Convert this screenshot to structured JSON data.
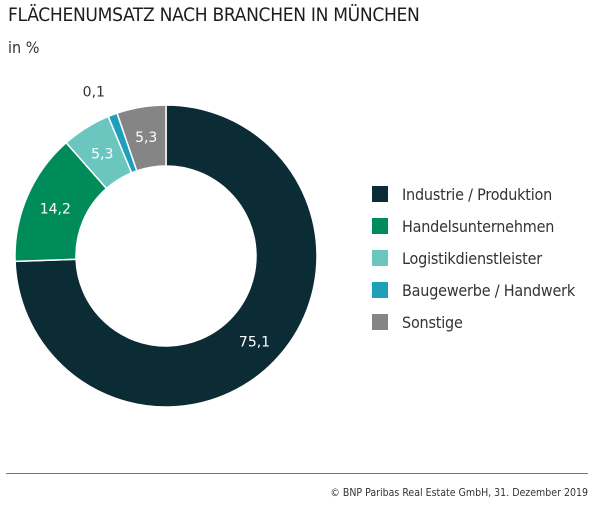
{
  "chart_data": {
    "type": "pie",
    "donut": true,
    "title": "FLÄCHENUMSATZ NACH BRANCHEN IN MÜNCHEN",
    "subtitle": "in %",
    "legend_position": "right",
    "slices": [
      {
        "name": "Industrie / Produktion",
        "value": 75.1,
        "label": "75,1",
        "color": "#0b2b35"
      },
      {
        "name": "Handelsunternehmen",
        "value": 14.2,
        "label": "14,2",
        "color": "#008c5a"
      },
      {
        "name": "Logistikdienstleister",
        "value": 5.3,
        "label": "5,3",
        "color": "#6cc6c0"
      },
      {
        "name": "Baugewerbe / Handwerk",
        "value": 0.1,
        "label": "0,1",
        "color": "#1e9fbb"
      },
      {
        "name": "Sonstige",
        "value": 5.3,
        "label": "5,3",
        "color": "#858585"
      }
    ]
  },
  "footer": "© BNP Paribas Real Estate GmbH, 31. Dezember 2019"
}
